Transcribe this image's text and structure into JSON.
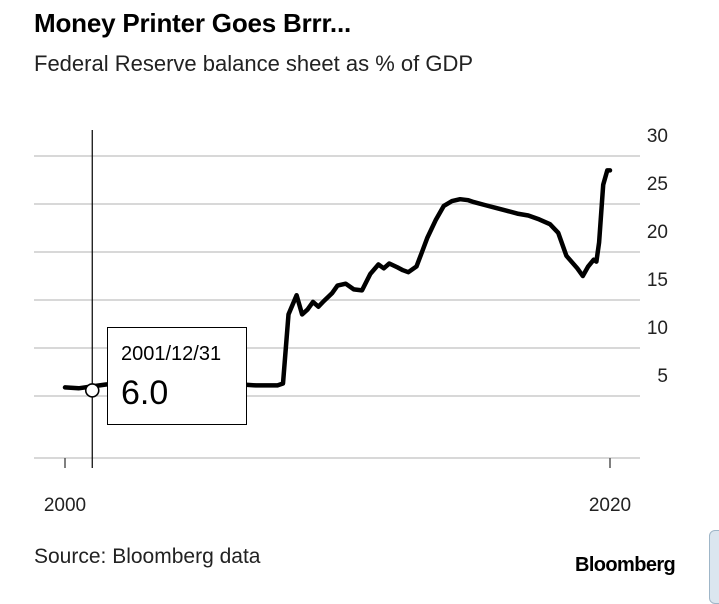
{
  "title": "Money Printer Goes Brrr...",
  "subtitle": "Federal Reserve balance sheet as % of GDP",
  "source": "Source: Bloomberg data",
  "brand": "Bloomberg",
  "tooltip": {
    "date": "2001/12/31",
    "value": "6.0"
  },
  "colors": {
    "line": "#000000",
    "grid": "#cccccc",
    "text": "#222222"
  },
  "chart_data": {
    "type": "line",
    "title": "Money Printer Goes Brrr...",
    "subtitle": "Federal Reserve balance sheet as % of GDP",
    "xlabel": "",
    "ylabel": "",
    "x_ticks": [
      2000,
      2020
    ],
    "y_ticks": [
      5,
      10,
      15,
      20,
      25,
      30
    ],
    "xlim": [
      1999.6,
      2021.2
    ],
    "ylim": [
      3,
      30
    ],
    "grid": "horizontal",
    "y_axis_side": "right",
    "highlight": {
      "x": 2001.0,
      "y": 6.0,
      "label": "2001/12/31"
    },
    "series": [
      {
        "x": [
          2000.0,
          2000.5,
          2001.0,
          2001.5,
          2002.0,
          2002.5,
          2003.0,
          2003.5,
          2004.0,
          2004.5,
          2005.0,
          2005.5,
          2006.0,
          2006.5,
          2007.0,
          2007.5,
          2007.8,
          2008.0,
          2008.2,
          2008.5,
          2008.7,
          2008.9,
          2009.1,
          2009.3,
          2009.5,
          2009.8,
          2010.0,
          2010.3,
          2010.6,
          2010.9,
          2011.2,
          2011.5,
          2011.7,
          2011.9,
          2012.2,
          2012.4,
          2012.6,
          2012.9,
          2013.1,
          2013.3,
          2013.6,
          2013.9,
          2014.2,
          2014.5,
          2014.8,
          2015.0,
          2015.4,
          2015.8,
          2016.2,
          2016.6,
          2017.0,
          2017.4,
          2017.8,
          2018.1,
          2018.4,
          2018.8,
          2019.0,
          2019.2,
          2019.4,
          2019.5,
          2019.6,
          2019.75,
          2019.9,
          2020.0
        ],
        "values": [
          5.9,
          5.8,
          6.0,
          6.2,
          6.3,
          6.6,
          6.6,
          6.5,
          6.6,
          6.5,
          6.4,
          6.3,
          6.2,
          6.2,
          6.1,
          6.1,
          6.1,
          6.3,
          13.5,
          15.5,
          13.5,
          14.0,
          14.8,
          14.3,
          14.9,
          15.7,
          16.5,
          16.7,
          16.1,
          16.0,
          17.7,
          18.7,
          18.3,
          18.8,
          18.4,
          18.1,
          17.9,
          18.5,
          20.0,
          21.5,
          23.3,
          24.8,
          25.3,
          25.5,
          25.4,
          25.2,
          24.9,
          24.6,
          24.3,
          24.0,
          23.8,
          23.4,
          22.9,
          22.0,
          19.6,
          18.3,
          17.5,
          18.5,
          19.2,
          19.0,
          21.0,
          27.0,
          28.5,
          28.5
        ]
      }
    ]
  }
}
